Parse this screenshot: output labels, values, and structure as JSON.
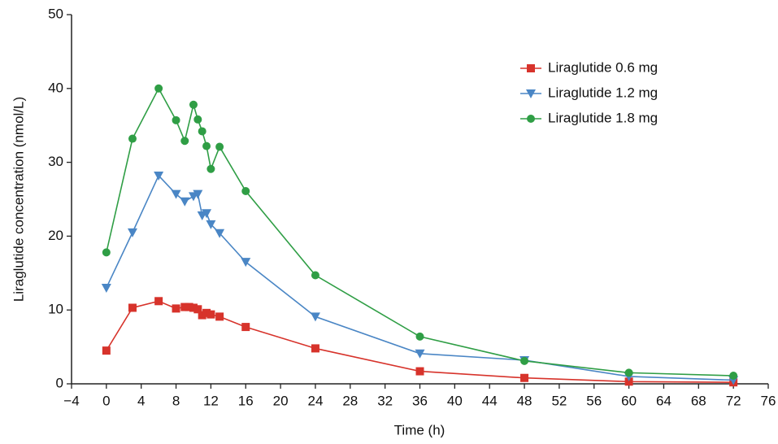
{
  "chart_data": {
    "type": "line",
    "xlabel": "Time (h)",
    "ylabel": "Liraglutide concentration (nmol/L)",
    "xlim": [
      -4,
      76
    ],
    "xticks": [
      {
        "value": -4,
        "label": "−4"
      },
      0,
      4,
      8,
      12,
      16,
      20,
      24,
      28,
      32,
      36,
      40,
      44,
      48,
      52,
      56,
      60,
      64,
      68,
      72,
      76
    ],
    "ylim": [
      0,
      50
    ],
    "yticks": [
      0,
      10,
      20,
      30,
      40,
      50
    ],
    "grid": false,
    "legend": "upper right",
    "series": [
      {
        "name": "Liraglutide 0.6 mg",
        "color": "#d7332b",
        "marker": "square",
        "x": [
          0,
          3,
          6,
          8,
          9,
          9.5,
          10,
          10.5,
          11,
          11.5,
          12,
          13,
          16,
          24,
          36,
          48,
          60,
          72
        ],
        "values": [
          4.5,
          10.3,
          11.2,
          10.2,
          10.4,
          10.4,
          10.3,
          10.1,
          9.3,
          9.6,
          9.4,
          9.1,
          7.7,
          4.8,
          1.7,
          0.8,
          0.3,
          0.2
        ]
      },
      {
        "name": "Liraglutide 1.2 mg",
        "color": "#4a86c5",
        "marker": "triangle-down",
        "x": [
          0,
          3,
          6,
          8,
          9,
          10,
          10.5,
          11,
          11.5,
          12,
          13,
          16,
          24,
          36,
          48,
          60,
          72
        ],
        "values": [
          13,
          20.5,
          28.2,
          25.7,
          24.7,
          25.4,
          25.7,
          22.8,
          23.1,
          21.6,
          20.4,
          16.5,
          9.1,
          4.1,
          3.2,
          1.0,
          0.5
        ]
      },
      {
        "name": "Liraglutide 1.8 mg",
        "color": "#2f9e45",
        "marker": "circle",
        "x": [
          0,
          3,
          6,
          8,
          9,
          10,
          10.5,
          11,
          11.5,
          12,
          13,
          16,
          24,
          36,
          48,
          60,
          72
        ],
        "values": [
          17.8,
          33.2,
          40,
          35.7,
          32.9,
          37.8,
          35.8,
          34.2,
          32.2,
          29.1,
          32.1,
          26.1,
          14.7,
          6.4,
          3.1,
          1.5,
          1.1
        ]
      }
    ]
  }
}
